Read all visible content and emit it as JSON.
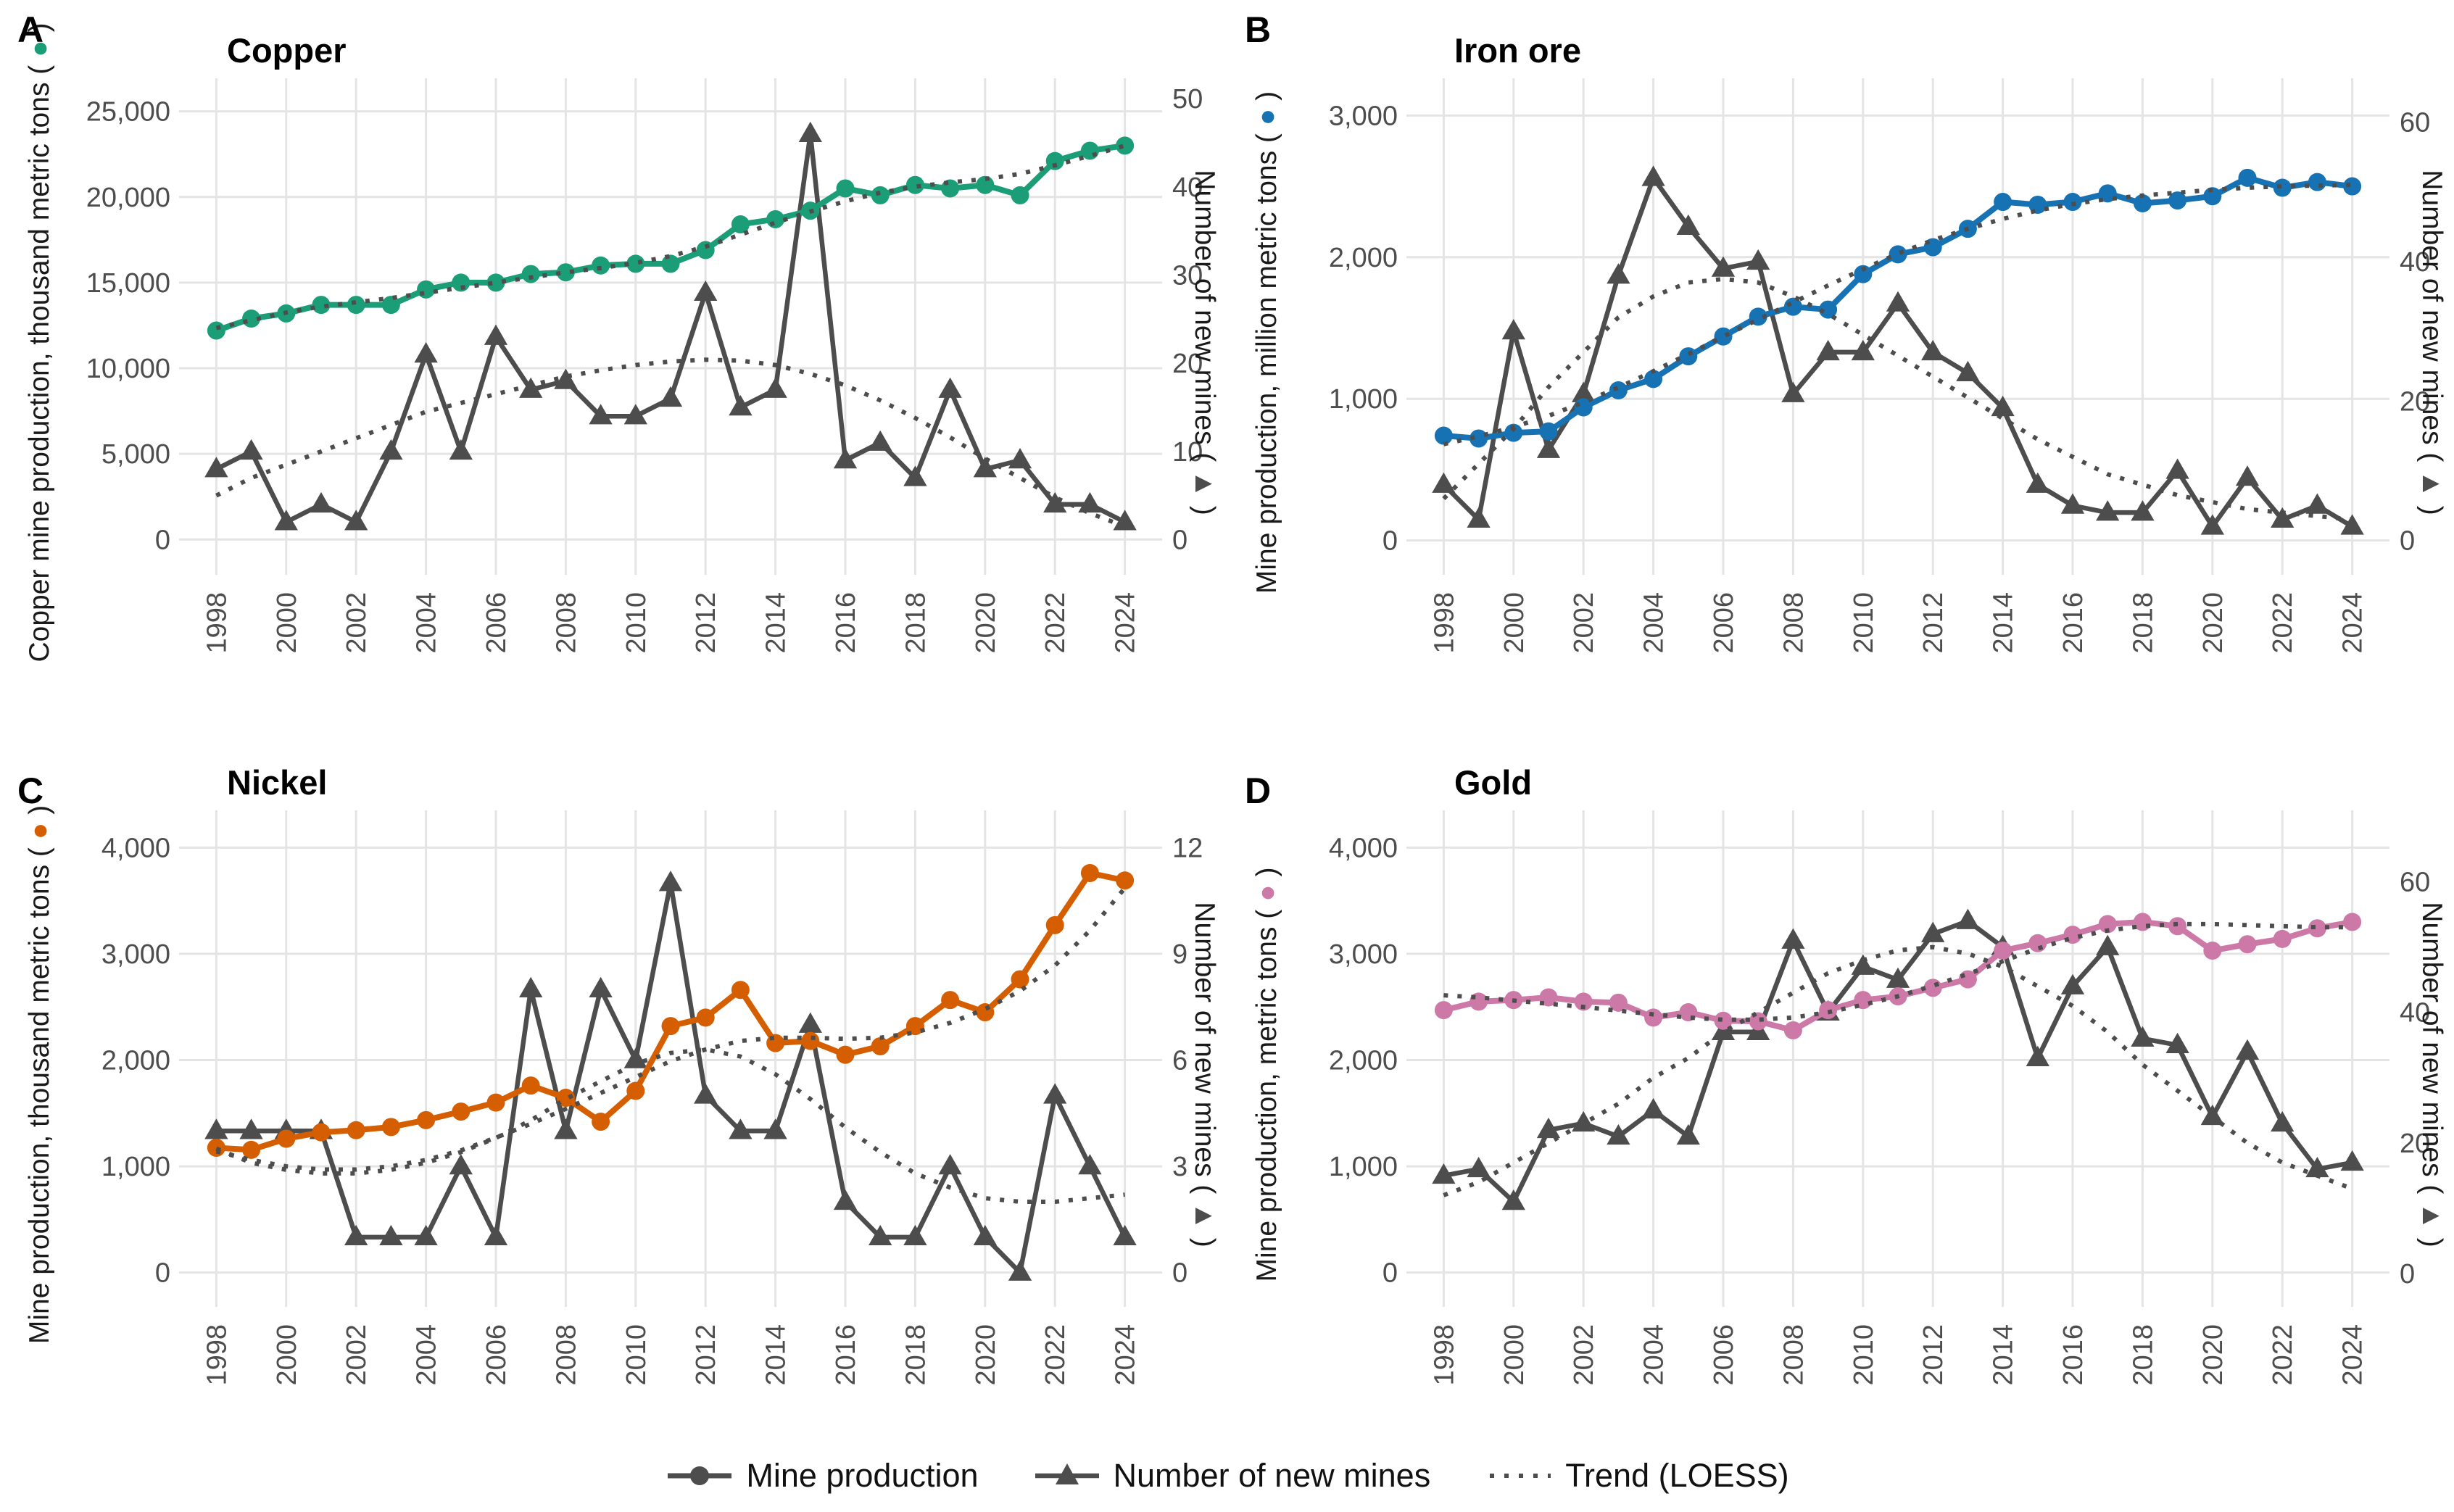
{
  "figure": {
    "production_marker": "●",
    "mines_marker": "▲",
    "grid_color": "#E4E4E4",
    "mines_color": "#4D4D4D",
    "tick_color": "#4D4D4D",
    "text_color": "#1A1A1A",
    "legend": {
      "items": [
        {
          "label": "Mine production",
          "marker": "line-circle"
        },
        {
          "label": "Number of new mines",
          "marker": "line-triangle"
        },
        {
          "label": "Trend (LOESS)",
          "marker": "dotted-line"
        }
      ]
    }
  },
  "chart_data": [
    {
      "type": "line",
      "panel_label": "A",
      "title": "Copper",
      "ylabel_left": "Copper mine production, thousand metric tons",
      "ylabel_right": "Number of new mines",
      "color": "#1B9E77",
      "x": [
        1998,
        1999,
        2000,
        2001,
        2002,
        2003,
        2004,
        2005,
        2006,
        2007,
        2008,
        2009,
        2010,
        2011,
        2012,
        2013,
        2014,
        2015,
        2016,
        2017,
        2018,
        2019,
        2020,
        2021,
        2022,
        2023,
        2024
      ],
      "x_ticks": [
        1998,
        2000,
        2002,
        2004,
        2006,
        2008,
        2010,
        2012,
        2014,
        2016,
        2018,
        2020,
        2022,
        2024
      ],
      "x_lim": [
        1997.1,
        2024.9
      ],
      "left_ticks": [
        0,
        5000,
        10000,
        15000,
        20000,
        25000
      ],
      "left_tick_labels": [
        "0",
        "5,000",
        "10,000",
        "15,000",
        "20,000",
        "25,000"
      ],
      "left_lim": [
        -1300,
        26000
      ],
      "right_ticks": [
        0,
        10,
        20,
        30,
        40,
        50
      ],
      "right_lim": [
        -2.5,
        50.5
      ],
      "series": [
        {
          "name": "Mine production",
          "axis": "left",
          "style": "solid-circle",
          "values": [
            12200,
            12900,
            13200,
            13700,
            13700,
            13700,
            14600,
            15000,
            15000,
            15500,
            15600,
            16000,
            16100,
            16100,
            16900,
            18400,
            18700,
            19200,
            20500,
            20100,
            20700,
            20500,
            20700,
            20100,
            22100,
            22700,
            23000
          ]
        },
        {
          "name": "Number of new mines",
          "axis": "right",
          "style": "solid-triangle",
          "values": [
            8,
            10,
            2,
            4,
            2,
            10,
            21,
            10,
            23,
            17,
            18,
            14,
            14,
            16,
            28,
            15,
            17,
            46,
            9,
            11,
            7,
            17,
            8,
            9,
            4,
            4,
            2
          ]
        },
        {
          "name": "Trend (LOESS) production",
          "axis": "left",
          "style": "dotted",
          "values": [
            12350,
            12800,
            13250,
            13600,
            13850,
            14100,
            14400,
            14700,
            15000,
            15300,
            15600,
            15850,
            16150,
            16550,
            17100,
            17800,
            18500,
            19150,
            19750,
            20250,
            20600,
            20850,
            21050,
            21350,
            21850,
            22400,
            23000
          ]
        },
        {
          "name": "Trend (LOESS) new mines",
          "axis": "right",
          "style": "dotted",
          "values": [
            5,
            7,
            8.5,
            10,
            11.5,
            13,
            14.5,
            15.5,
            16.5,
            17.5,
            18.5,
            19.2,
            19.8,
            20.2,
            20.4,
            20.3,
            19.8,
            18.8,
            17.5,
            15.8,
            13.8,
            11.6,
            9.2,
            7,
            4.8,
            3,
            1.5
          ]
        }
      ]
    },
    {
      "type": "line",
      "panel_label": "B",
      "title": "Iron ore",
      "ylabel_left": "Mine production, million metric tons",
      "ylabel_right": "Number of new mines",
      "color": "#1772B4",
      "x": [
        1998,
        1999,
        2000,
        2001,
        2002,
        2003,
        2004,
        2005,
        2006,
        2007,
        2008,
        2009,
        2010,
        2011,
        2012,
        2013,
        2014,
        2015,
        2016,
        2017,
        2018,
        2019,
        2020,
        2021,
        2022,
        2023,
        2024
      ],
      "x_ticks": [
        1998,
        2000,
        2002,
        2004,
        2006,
        2008,
        2010,
        2012,
        2014,
        2016,
        2018,
        2020,
        2022,
        2024
      ],
      "x_lim": [
        1997.1,
        2024.9
      ],
      "left_ticks": [
        0,
        1000,
        2000,
        3000
      ],
      "left_tick_labels": [
        "0",
        "1,000",
        "2,000",
        "3,000"
      ],
      "left_lim": [
        -150,
        3150
      ],
      "right_ticks": [
        0,
        20,
        40,
        60
      ],
      "right_lim": [
        -3.05,
        64
      ],
      "series": [
        {
          "name": "Mine production",
          "axis": "left",
          "style": "solid-circle",
          "values": [
            740,
            720,
            760,
            770,
            940,
            1060,
            1140,
            1300,
            1440,
            1580,
            1650,
            1630,
            1880,
            2020,
            2070,
            2200,
            2390,
            2370,
            2390,
            2450,
            2380,
            2400,
            2430,
            2560,
            2490,
            2530,
            2500
          ]
        },
        {
          "name": "Number of new mines",
          "axis": "right",
          "style": "solid-triangle",
          "values": [
            8,
            3,
            30,
            13,
            21,
            38,
            52,
            45,
            39,
            40,
            21,
            27,
            27,
            34,
            27,
            24,
            19,
            8,
            5,
            4,
            4,
            10,
            2,
            9,
            3,
            5,
            2
          ]
        },
        {
          "name": "Trend (LOESS) production",
          "axis": "left",
          "style": "dotted",
          "values": [
            680,
            735,
            800,
            880,
            975,
            1080,
            1195,
            1315,
            1440,
            1560,
            1680,
            1800,
            1915,
            2025,
            2120,
            2200,
            2270,
            2330,
            2375,
            2410,
            2435,
            2455,
            2475,
            2490,
            2500,
            2505,
            2510
          ]
        },
        {
          "name": "Trend (LOESS) new mines",
          "axis": "right",
          "style": "dotted",
          "values": [
            6,
            11,
            16,
            22,
            27,
            32,
            35,
            37,
            37.5,
            37,
            35,
            32.5,
            29.5,
            26.5,
            23.5,
            20.5,
            17.5,
            14.5,
            12,
            9.5,
            8,
            6.5,
            5.5,
            4.5,
            4,
            3.5,
            3
          ]
        }
      ]
    },
    {
      "type": "line",
      "panel_label": "C",
      "title": "Nickel",
      "ylabel_left": "Mine production, thousand metric tons",
      "ylabel_right": "Number of new mines",
      "color": "#D55E00",
      "x": [
        1998,
        1999,
        2000,
        2001,
        2002,
        2003,
        2004,
        2005,
        2006,
        2007,
        2008,
        2009,
        2010,
        2011,
        2012,
        2013,
        2014,
        2015,
        2016,
        2017,
        2018,
        2019,
        2020,
        2021,
        2022,
        2023,
        2024
      ],
      "x_ticks": [
        1998,
        2000,
        2002,
        2004,
        2006,
        2008,
        2010,
        2012,
        2014,
        2016,
        2018,
        2020,
        2022,
        2024
      ],
      "x_lim": [
        1997.1,
        2024.9
      ],
      "left_ticks": [
        0,
        1000,
        2000,
        3000,
        4000
      ],
      "left_tick_labels": [
        "0",
        "1,000",
        "2,000",
        "3,000",
        "4,000"
      ],
      "left_lim": [
        -200,
        4200
      ],
      "right_ticks": [
        0,
        3,
        6,
        9,
        12
      ],
      "right_lim": [
        -0.6,
        12.6
      ],
      "series": [
        {
          "name": "Mine production",
          "axis": "left",
          "style": "solid-circle",
          "values": [
            1175,
            1155,
            1260,
            1320,
            1340,
            1370,
            1435,
            1515,
            1600,
            1760,
            1645,
            1420,
            1710,
            2320,
            2400,
            2660,
            2160,
            2180,
            2050,
            2130,
            2320,
            2565,
            2450,
            2760,
            3270,
            3760,
            3690
          ]
        },
        {
          "name": "Number of new mines",
          "axis": "right",
          "style": "solid-triangle",
          "values": [
            4,
            4,
            4,
            4,
            1,
            1,
            1,
            3,
            1,
            8,
            4,
            8,
            6,
            11,
            5,
            4,
            4,
            7,
            2,
            1,
            1,
            3,
            1,
            0,
            5,
            3,
            1
          ]
        },
        {
          "name": "Trend (LOESS) production",
          "axis": "left",
          "style": "dotted",
          "values": [
            1140,
            1060,
            1000,
            970,
            970,
            1000,
            1060,
            1150,
            1270,
            1400,
            1540,
            1690,
            1840,
            1990,
            2100,
            2180,
            2210,
            2210,
            2200,
            2210,
            2260,
            2350,
            2480,
            2650,
            2890,
            3220,
            3620
          ]
        },
        {
          "name": "Trend (LOESS) new mines",
          "axis": "right",
          "style": "dotted",
          "values": [
            3.5,
            3.1,
            2.9,
            2.8,
            2.8,
            2.9,
            3.1,
            3.4,
            3.8,
            4.3,
            4.9,
            5.4,
            5.9,
            6.2,
            6.3,
            6.1,
            5.6,
            4.9,
            4.1,
            3.4,
            2.8,
            2.4,
            2.1,
            2,
            2,
            2.1,
            2.2
          ]
        }
      ]
    },
    {
      "type": "line",
      "panel_label": "D",
      "title": "Gold",
      "ylabel_left": "Mine production, metric tons",
      "ylabel_right": "Number of new mines",
      "color": "#CC79A7",
      "x": [
        1998,
        1999,
        2000,
        2001,
        2002,
        2003,
        2004,
        2005,
        2006,
        2007,
        2008,
        2009,
        2010,
        2011,
        2012,
        2013,
        2014,
        2015,
        2016,
        2017,
        2018,
        2019,
        2020,
        2021,
        2022,
        2023,
        2024
      ],
      "x_ticks": [
        1998,
        2000,
        2002,
        2004,
        2006,
        2008,
        2010,
        2012,
        2014,
        2016,
        2018,
        2020,
        2022,
        2024
      ],
      "x_lim": [
        1997.1,
        2024.9
      ],
      "left_ticks": [
        0,
        1000,
        2000,
        3000,
        4000
      ],
      "left_tick_labels": [
        "0",
        "1,000",
        "2,000",
        "3,000",
        "4,000"
      ],
      "left_lim": [
        -200,
        4200
      ],
      "right_ticks": [
        0,
        20,
        40,
        60
      ],
      "right_lim": [
        -3.1,
        68.5
      ],
      "series": [
        {
          "name": "Mine production",
          "axis": "left",
          "style": "solid-circle",
          "values": [
            2470,
            2550,
            2565,
            2590,
            2550,
            2540,
            2400,
            2450,
            2370,
            2365,
            2280,
            2470,
            2565,
            2600,
            2680,
            2760,
            3030,
            3100,
            3180,
            3280,
            3300,
            3260,
            3030,
            3090,
            3140,
            3240,
            3300
          ]
        },
        {
          "name": "Number of new mines",
          "axis": "right",
          "style": "solid-triangle",
          "values": [
            15,
            16,
            11,
            22,
            23,
            21,
            25,
            21,
            37,
            37,
            51,
            40,
            47,
            45,
            52,
            54,
            50,
            33,
            44,
            50,
            36,
            35,
            24,
            34,
            23,
            16,
            17
          ]
        },
        {
          "name": "Trend (LOESS) production",
          "axis": "left",
          "style": "dotted",
          "values": [
            2610,
            2590,
            2560,
            2530,
            2500,
            2465,
            2430,
            2400,
            2380,
            2380,
            2400,
            2450,
            2520,
            2600,
            2700,
            2810,
            2930,
            3050,
            3150,
            3220,
            3260,
            3280,
            3280,
            3270,
            3260,
            3250,
            3250
          ]
        },
        {
          "name": "Trend (LOESS) new mines",
          "axis": "right",
          "style": "dotted",
          "values": [
            12,
            14,
            17,
            20,
            23,
            26,
            30,
            33,
            37,
            40,
            43,
            46,
            48,
            49.5,
            50,
            49,
            47,
            44,
            41,
            37,
            32,
            28,
            24,
            20,
            17,
            15,
            13
          ]
        }
      ]
    }
  ]
}
